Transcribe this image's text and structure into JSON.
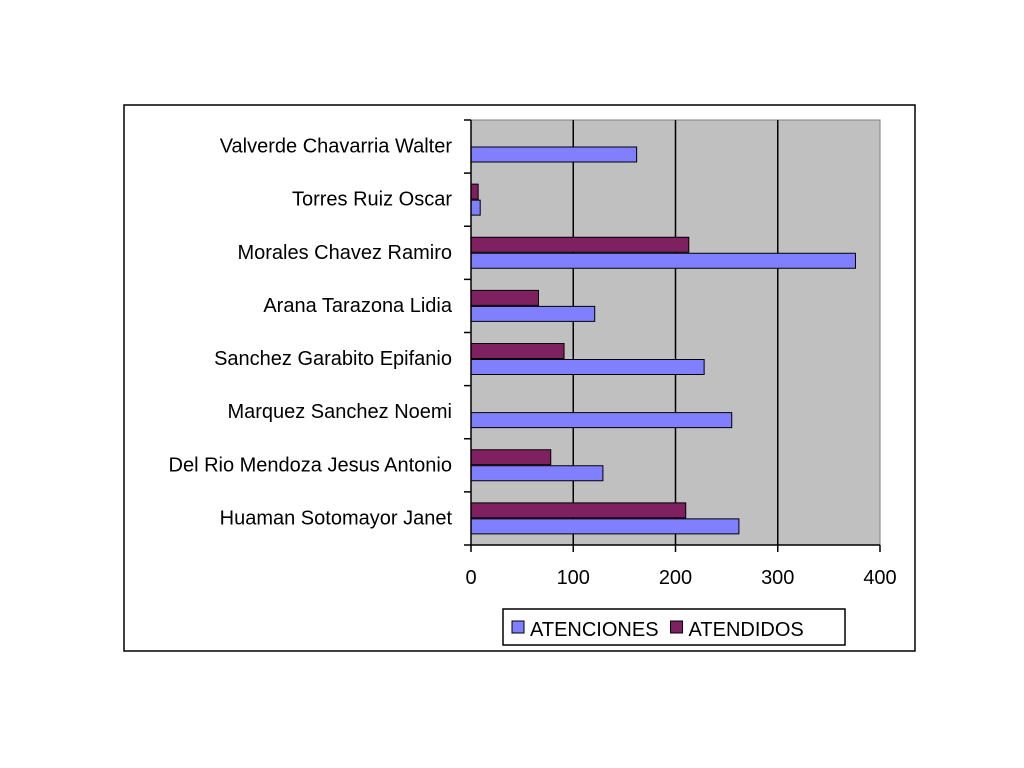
{
  "chart_data": {
    "type": "bar",
    "orientation": "horizontal",
    "categories": [
      "Huaman Sotomayor Janet",
      "Del Rio Mendoza Jesus Antonio",
      "Marquez Sanchez Noemi",
      "Sanchez Garabito Epifanio",
      "Arana Tarazona Lidia",
      "Morales Chavez Ramiro",
      "Torres Ruiz Oscar",
      "Valverde Chavarria Walter"
    ],
    "series": [
      {
        "name": "ATENCIONES",
        "color": "#8080ff",
        "values": [
          262,
          129,
          255,
          228,
          121,
          376,
          9,
          162
        ]
      },
      {
        "name": "ATENDIDOS",
        "color": "#7f2060",
        "values": [
          210,
          78,
          0,
          91,
          66,
          213,
          7,
          0
        ]
      }
    ],
    "xlim": [
      0,
      400
    ],
    "xticks": [
      "0",
      "100",
      "200",
      "300",
      "400"
    ],
    "grid": true,
    "plot_background": "#c0c0c0",
    "legend_position": "bottom"
  }
}
